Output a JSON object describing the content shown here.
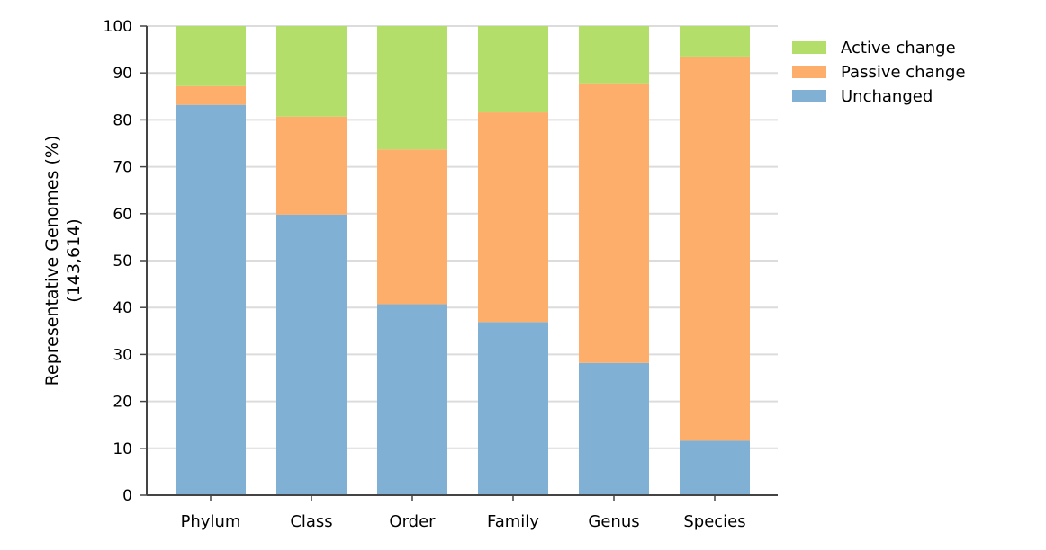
{
  "chart_data": {
    "type": "bar",
    "stacked": true,
    "title": "",
    "xlabel": "",
    "ylabel_lines": [
      "Representative Genomes (%)",
      "(143,614)"
    ],
    "ylim": [
      0,
      100
    ],
    "yticks": [
      0,
      10,
      20,
      30,
      40,
      50,
      60,
      70,
      80,
      90,
      100
    ],
    "grid": true,
    "legend_position": "top-right, outside plot",
    "categories": [
      "Phylum",
      "Class",
      "Order",
      "Family",
      "Genus",
      "Species"
    ],
    "series": [
      {
        "name": "Unchanged",
        "color": "#80b0d3",
        "values": [
          83.2,
          59.8,
          40.7,
          36.9,
          28.2,
          11.6
        ]
      },
      {
        "name": "Passive change",
        "color": "#fdae6b",
        "values": [
          4.0,
          20.9,
          33.0,
          44.7,
          59.6,
          81.9
        ]
      },
      {
        "name": "Active change",
        "color": "#b3de69",
        "values": [
          12.8,
          19.3,
          26.3,
          18.4,
          12.2,
          6.5
        ]
      }
    ],
    "legend_order": [
      "Active change",
      "Passive change",
      "Unchanged"
    ]
  }
}
